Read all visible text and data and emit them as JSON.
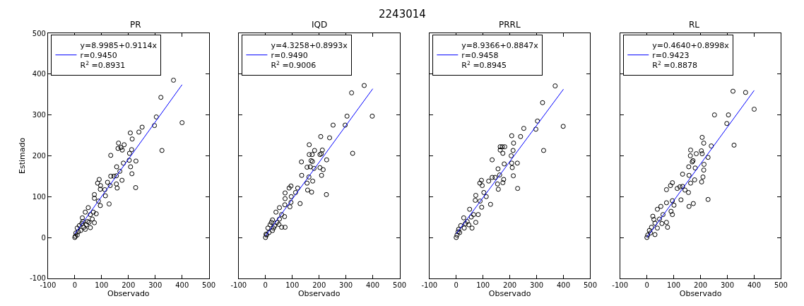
{
  "chart_data": [
    {
      "type": "scatter",
      "title": "PR",
      "xlabel": "Observado",
      "ylabel": "Estimado",
      "annotations": [
        "2243014"
      ],
      "xlim": [
        -100,
        500
      ],
      "ylim": [
        -100,
        500
      ],
      "xticks": [
        -100,
        0,
        100,
        200,
        300,
        400,
        500
      ],
      "yticks": [
        -100,
        0,
        100,
        200,
        300,
        400,
        500
      ],
      "legend": "top left",
      "series": [
        {
          "marker": "circle",
          "color": "#000000",
          "x": [
            368,
            321,
            304,
            297,
            400,
            325,
            251,
            239,
            207,
            214,
            163,
            184,
            161,
            172,
            177,
            212,
            204,
            134,
            203,
            228,
            181,
            156,
            208,
            168,
            213,
            134,
            146,
            155,
            91,
            176,
            85,
            96,
            122,
            155,
            158,
            132,
            227,
            95,
            112,
            114,
            73,
            73,
            88,
            128,
            95,
            50,
            69,
            80,
            39,
            28,
            58,
            73,
            58,
            17,
            9,
            34,
            47,
            26,
            4,
            2,
            0,
            9,
            22,
            43,
            65,
            53,
            13,
            30,
            39
          ],
          "values": [
            385,
            343,
            295,
            274,
            281,
            213,
            270,
            258,
            256,
            241,
            231,
            227,
            218,
            220,
            214,
            215,
            206,
            201,
            189,
            187,
            182,
            173,
            173,
            162,
            156,
            150,
            150,
            151,
            142,
            140,
            133,
            127,
            135,
            131,
            121,
            127,
            122,
            118,
            117,
            102,
            105,
            96,
            89,
            82,
            78,
            73,
            62,
            58,
            62,
            48,
            56,
            36,
            24,
            29,
            23,
            25,
            39,
            34,
            11,
            3,
            0,
            6,
            17,
            31,
            45,
            37,
            14,
            39,
            20
          ]
        },
        {
          "type": "line",
          "color": "#0000ff",
          "name": "y=8.9985+0.9114x\nr=0.9450\nR$^{2}$ =0.8931",
          "x": [
            0,
            400
          ],
          "values": [
            9,
            374
          ]
        }
      ]
    },
    {
      "type": "scatter",
      "title": "IQD",
      "xlabel": "Observado",
      "xlim": [
        -100,
        500
      ],
      "ylim": [
        -100,
        500
      ],
      "xticks": [
        -100,
        0,
        100,
        200,
        300,
        400,
        500
      ],
      "yticks": [
        -100,
        0,
        100,
        200,
        300,
        400,
        500
      ],
      "tick_labels": "x",
      "legend": "top left",
      "series": [
        {
          "marker": "circle",
          "color": "#000000",
          "x": [
            368,
            321,
            304,
            297,
            398,
            325,
            252,
            239,
            206,
            163,
            183,
            163,
            174,
            212,
            203,
            208,
            134,
            170,
            175,
            228,
            155,
            167,
            181,
            203,
            215,
            209,
            135,
            162,
            176,
            95,
            88,
            120,
            155,
            157,
            172,
            227,
            73,
            112,
            96,
            73,
            129,
            95,
            91,
            72,
            52,
            39,
            60,
            71,
            73,
            60,
            26,
            43,
            17,
            9,
            26,
            0,
            4,
            13,
            34,
            52,
            50,
            30,
            22,
            2
          ],
          "values": [
            372,
            354,
            297,
            275,
            297,
            206,
            275,
            244,
            247,
            227,
            213,
            203,
            203,
            214,
            203,
            205,
            185,
            188,
            186,
            190,
            172,
            173,
            169,
            171,
            166,
            152,
            152,
            148,
            138,
            126,
            121,
            121,
            133,
            116,
            111,
            105,
            109,
            110,
            100,
            95,
            83,
            86,
            75,
            80,
            73,
            62,
            56,
            51,
            25,
            25,
            43,
            37,
            31,
            23,
            17,
            0,
            6,
            12,
            28,
            45,
            32,
            23,
            37,
            8
          ]
        },
        {
          "type": "line",
          "color": "#0000ff",
          "name": "y=4.3258+0.8993x\nr=0.9490\nR$^{2}$ =0.9006",
          "x": [
            0,
            400
          ],
          "values": [
            4,
            364
          ]
        }
      ]
    },
    {
      "type": "scatter",
      "title": "PRRL",
      "xlabel": "Observado",
      "xlim": [
        -100,
        500
      ],
      "ylim": [
        -100,
        500
      ],
      "xticks": [
        -100,
        0,
        100,
        200,
        300,
        400,
        500
      ],
      "yticks": [
        -100,
        0,
        100,
        200,
        300,
        400,
        500
      ],
      "tick_labels": "x",
      "legend": "top left",
      "series": [
        {
          "marker": "circle",
          "color": "#000000",
          "x": [
            369,
            322,
            303,
            297,
            399,
            326,
            252,
            240,
            207,
            214,
            164,
            172,
            181,
            164,
            174,
            212,
            205,
            134,
            179,
            228,
            207,
            156,
            209,
            213,
            162,
            134,
            145,
            177,
            94,
            88,
            97,
            121,
            154,
            157,
            174,
            229,
            73,
            103,
            112,
            71,
            89,
            128,
            95,
            50,
            65,
            82,
            73,
            59,
            28,
            41,
            17,
            9,
            30,
            0,
            3,
            13,
            47,
            56,
            34,
            7
          ],
          "values": [
            371,
            330,
            285,
            265,
            272,
            213,
            267,
            247,
            249,
            231,
            222,
            222,
            222,
            214,
            206,
            213,
            200,
            190,
            180,
            182,
            182,
            168,
            171,
            151,
            153,
            147,
            147,
            142,
            140,
            133,
            127,
            138,
            131,
            118,
            134,
            120,
            103,
            110,
            100,
            91,
            89,
            81,
            74,
            69,
            56,
            56,
            37,
            23,
            48,
            39,
            29,
            20,
            23,
            0,
            6,
            12,
            31,
            50,
            34,
            14
          ]
        },
        {
          "type": "line",
          "color": "#0000ff",
          "name": "y=8.9366+0.8847x\nr=0.9458\nR$^{2}$ =0.8945",
          "x": [
            0,
            400
          ],
          "values": [
            9,
            363
          ]
        }
      ]
    },
    {
      "type": "scatter",
      "title": "RL",
      "xlabel": "Observado",
      "xlim": [
        -100,
        500
      ],
      "ylim": [
        -100,
        500
      ],
      "xticks": [
        -100,
        0,
        100,
        200,
        300,
        400,
        500
      ],
      "yticks": [
        -100,
        0,
        100,
        200,
        300,
        400,
        500
      ],
      "tick_labels": "x",
      "legend": "top left",
      "series": [
        {
          "marker": "circle",
          "color": "#000000",
          "x": [
            321,
            368,
            400,
            252,
            304,
            298,
            325,
            206,
            212,
            240,
            163,
            203,
            184,
            206,
            162,
            228,
            169,
            172,
            213,
            180,
            156,
            212,
            133,
            157,
            209,
            178,
            204,
            95,
            163,
            88,
            73,
            113,
            123,
            133,
            155,
            142,
            228,
            173,
            157,
            73,
            95,
            127,
            101,
            90,
            95,
            52,
            39,
            60,
            73,
            77,
            22,
            30,
            56,
            17,
            9,
            30,
            0,
            3,
            13,
            39,
            47,
            26
          ],
          "values": [
            358,
            355,
            314,
            300,
            300,
            279,
            226,
            245,
            231,
            224,
            214,
            212,
            205,
            205,
            200,
            196,
            185,
            188,
            179,
            170,
            173,
            165,
            155,
            152,
            148,
            141,
            136,
            134,
            133,
            127,
            117,
            120,
            124,
            125,
            110,
            116,
            93,
            83,
            76,
            85,
            90,
            92,
            79,
            64,
            56,
            76,
            69,
            56,
            37,
            25,
            52,
            35,
            34,
            25,
            17,
            7,
            0,
            6,
            11,
            23,
            45,
            44
          ]
        },
        {
          "type": "line",
          "color": "#0000ff",
          "name": "y=0.4640+0.8998x\nr=0.9423\nR$^{2}$ =0.8878",
          "x": [
            0,
            400
          ],
          "values": [
            0,
            360
          ]
        }
      ]
    }
  ]
}
